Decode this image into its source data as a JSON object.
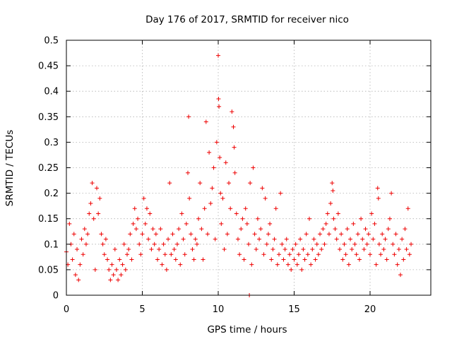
{
  "chart_data": {
    "type": "scatter",
    "title": "Day 176 of 2017, SRMTID for receiver nico",
    "xlabel": "GPS time / hours",
    "ylabel": "SRMTID / TECUs",
    "xlim": [
      0,
      24
    ],
    "ylim": [
      0,
      0.5
    ],
    "x_ticks": [
      0,
      5,
      10,
      15,
      20
    ],
    "x_tick_labels": [
      "0",
      "5",
      "10",
      "15",
      "20"
    ],
    "y_ticks": [
      0,
      0.05,
      0.1,
      0.15,
      0.2,
      0.25,
      0.3,
      0.35,
      0.4,
      0.45,
      0.5
    ],
    "y_tick_labels": [
      "0",
      "0.05",
      "0.1",
      "0.15",
      "0.2",
      "0.25",
      "0.3",
      "0.35",
      "0.4",
      "0.45",
      "0.5"
    ],
    "grid": true,
    "marker": "+",
    "color": "#ee0000",
    "series": [
      {
        "name": "SRMTID",
        "points": [
          [
            0.0,
            0.085
          ],
          [
            0.1,
            0.06
          ],
          [
            0.2,
            0.14
          ],
          [
            0.3,
            0.1
          ],
          [
            0.4,
            0.07
          ],
          [
            0.5,
            0.12
          ],
          [
            0.6,
            0.04
          ],
          [
            0.7,
            0.09
          ],
          [
            0.8,
            0.03
          ],
          [
            0.9,
            0.06
          ],
          [
            1.0,
            0.11
          ],
          [
            1.1,
            0.08
          ],
          [
            1.2,
            0.13
          ],
          [
            1.3,
            0.1
          ],
          [
            1.4,
            0.12
          ],
          [
            1.5,
            0.16
          ],
          [
            1.6,
            0.18
          ],
          [
            1.7,
            0.22
          ],
          [
            1.8,
            0.15
          ],
          [
            1.9,
            0.05
          ],
          [
            2.0,
            0.21
          ],
          [
            2.1,
            0.16
          ],
          [
            2.2,
            0.19
          ],
          [
            2.3,
            0.12
          ],
          [
            2.4,
            0.1
          ],
          [
            2.5,
            0.08
          ],
          [
            2.6,
            0.11
          ],
          [
            2.7,
            0.07
          ],
          [
            2.8,
            0.05
          ],
          [
            2.9,
            0.03
          ],
          [
            3.0,
            0.06
          ],
          [
            3.1,
            0.04
          ],
          [
            3.2,
            0.09
          ],
          [
            3.3,
            0.05
          ],
          [
            3.4,
            0.03
          ],
          [
            3.5,
            0.07
          ],
          [
            3.6,
            0.04
          ],
          [
            3.7,
            0.06
          ],
          [
            3.8,
            0.1
          ],
          [
            3.9,
            0.05
          ],
          [
            4.0,
            0.08
          ],
          [
            4.1,
            0.09
          ],
          [
            4.2,
            0.12
          ],
          [
            4.3,
            0.07
          ],
          [
            4.4,
            0.14
          ],
          [
            4.5,
            0.17
          ],
          [
            4.6,
            0.13
          ],
          [
            4.7,
            0.15
          ],
          [
            4.8,
            0.1
          ],
          [
            4.9,
            0.08
          ],
          [
            5.0,
            0.12
          ],
          [
            5.1,
            0.19
          ],
          [
            5.2,
            0.14
          ],
          [
            5.3,
            0.17
          ],
          [
            5.4,
            0.11
          ],
          [
            5.5,
            0.16
          ],
          [
            5.6,
            0.09
          ],
          [
            5.7,
            0.13
          ],
          [
            5.8,
            0.1
          ],
          [
            5.9,
            0.12
          ],
          [
            6.0,
            0.07
          ],
          [
            6.1,
            0.09
          ],
          [
            6.2,
            0.13
          ],
          [
            6.3,
            0.06
          ],
          [
            6.4,
            0.1
          ],
          [
            6.5,
            0.08
          ],
          [
            6.6,
            0.05
          ],
          [
            6.7,
            0.11
          ],
          [
            6.8,
            0.22
          ],
          [
            6.9,
            0.08
          ],
          [
            7.0,
            0.12
          ],
          [
            7.1,
            0.09
          ],
          [
            7.2,
            0.07
          ],
          [
            7.3,
            0.1
          ],
          [
            7.4,
            0.13
          ],
          [
            7.5,
            0.06
          ],
          [
            7.6,
            0.16
          ],
          [
            7.7,
            0.11
          ],
          [
            7.8,
            0.08
          ],
          [
            7.9,
            0.14
          ],
          [
            8.0,
            0.24
          ],
          [
            8.05,
            0.35
          ],
          [
            8.1,
            0.19
          ],
          [
            8.2,
            0.12
          ],
          [
            8.3,
            0.09
          ],
          [
            8.4,
            0.07
          ],
          [
            8.5,
            0.11
          ],
          [
            8.6,
            0.1
          ],
          [
            8.7,
            0.15
          ],
          [
            8.8,
            0.22
          ],
          [
            8.9,
            0.13
          ],
          [
            9.0,
            0.07
          ],
          [
            9.1,
            0.17
          ],
          [
            9.2,
            0.34
          ],
          [
            9.3,
            0.12
          ],
          [
            9.4,
            0.28
          ],
          [
            9.5,
            0.18
          ],
          [
            9.6,
            0.21
          ],
          [
            9.7,
            0.25
          ],
          [
            9.8,
            0.11
          ],
          [
            9.9,
            0.3
          ],
          [
            10.0,
            0.47
          ],
          [
            10.02,
            0.385
          ],
          [
            10.05,
            0.37
          ],
          [
            10.1,
            0.27
          ],
          [
            10.15,
            0.2
          ],
          [
            10.2,
            0.14
          ],
          [
            10.3,
            0.19
          ],
          [
            10.4,
            0.09
          ],
          [
            10.5,
            0.26
          ],
          [
            10.6,
            0.12
          ],
          [
            10.7,
            0.22
          ],
          [
            10.8,
            0.17
          ],
          [
            10.9,
            0.36
          ],
          [
            11.0,
            0.33
          ],
          [
            11.05,
            0.29
          ],
          [
            11.1,
            0.24
          ],
          [
            11.2,
            0.16
          ],
          [
            11.3,
            0.11
          ],
          [
            11.4,
            0.08
          ],
          [
            11.5,
            0.13
          ],
          [
            11.6,
            0.15
          ],
          [
            11.7,
            0.07
          ],
          [
            11.8,
            0.17
          ],
          [
            11.9,
            0.14
          ],
          [
            12.0,
            0.1
          ],
          [
            12.1,
            0.22
          ],
          [
            12.2,
            0.06
          ],
          [
            12.3,
            0.25
          ],
          [
            12.4,
            0.12
          ],
          [
            12.5,
            0.09
          ],
          [
            12.6,
            0.15
          ],
          [
            12.7,
            0.11
          ],
          [
            12.8,
            0.13
          ],
          [
            12.9,
            0.21
          ],
          [
            13.0,
            0.08
          ],
          [
            13.1,
            0.19
          ],
          [
            13.2,
            0.1
          ],
          [
            13.3,
            0.12
          ],
          [
            13.4,
            0.14
          ],
          [
            13.5,
            0.07
          ],
          [
            13.6,
            0.09
          ],
          [
            13.7,
            0.11
          ],
          [
            13.8,
            0.17
          ],
          [
            13.9,
            0.06
          ],
          [
            14.0,
            0.08
          ],
          [
            14.1,
            0.2
          ],
          [
            14.2,
            0.1
          ],
          [
            14.3,
            0.07
          ],
          [
            14.4,
            0.09
          ],
          [
            14.5,
            0.11
          ],
          [
            14.6,
            0.06
          ],
          [
            14.7,
            0.08
          ],
          [
            14.8,
            0.05
          ],
          [
            14.9,
            0.09
          ],
          [
            15.0,
            0.07
          ],
          [
            15.1,
            0.1
          ],
          [
            15.2,
            0.06
          ],
          [
            15.3,
            0.08
          ],
          [
            15.4,
            0.11
          ],
          [
            15.5,
            0.05
          ],
          [
            15.6,
            0.09
          ],
          [
            15.7,
            0.07
          ],
          [
            15.8,
            0.12
          ],
          [
            15.9,
            0.08
          ],
          [
            16.0,
            0.15
          ],
          [
            16.1,
            0.06
          ],
          [
            16.2,
            0.09
          ],
          [
            16.3,
            0.11
          ],
          [
            16.4,
            0.07
          ],
          [
            16.5,
            0.1
          ],
          [
            16.6,
            0.08
          ],
          [
            16.7,
            0.12
          ],
          [
            16.8,
            0.09
          ],
          [
            16.9,
            0.13
          ],
          [
            17.0,
            0.1
          ],
          [
            17.1,
            0.14
          ],
          [
            17.2,
            0.16
          ],
          [
            17.3,
            0.12
          ],
          [
            17.4,
            0.18
          ],
          [
            17.5,
            0.22
          ],
          [
            17.55,
            0.205
          ],
          [
            17.6,
            0.15
          ],
          [
            17.7,
            0.13
          ],
          [
            17.8,
            0.11
          ],
          [
            17.9,
            0.16
          ],
          [
            18.0,
            0.09
          ],
          [
            18.1,
            0.12
          ],
          [
            18.2,
            0.07
          ],
          [
            18.3,
            0.1
          ],
          [
            18.4,
            0.08
          ],
          [
            18.5,
            0.13
          ],
          [
            18.6,
            0.06
          ],
          [
            18.7,
            0.11
          ],
          [
            18.8,
            0.09
          ],
          [
            18.9,
            0.14
          ],
          [
            19.0,
            0.1
          ],
          [
            19.1,
            0.08
          ],
          [
            19.2,
            0.12
          ],
          [
            19.3,
            0.07
          ],
          [
            19.4,
            0.15
          ],
          [
            19.5,
            0.11
          ],
          [
            19.6,
            0.09
          ],
          [
            19.7,
            0.13
          ],
          [
            19.8,
            0.1
          ],
          [
            19.9,
            0.12
          ],
          [
            20.0,
            0.08
          ],
          [
            20.1,
            0.16
          ],
          [
            20.2,
            0.11
          ],
          [
            20.3,
            0.14
          ],
          [
            20.4,
            0.06
          ],
          [
            20.5,
            0.21
          ],
          [
            20.55,
            0.19
          ],
          [
            20.6,
            0.1
          ],
          [
            20.7,
            0.08
          ],
          [
            20.8,
            0.12
          ],
          [
            20.9,
            0.09
          ],
          [
            21.0,
            0.11
          ],
          [
            21.1,
            0.07
          ],
          [
            21.2,
            0.13
          ],
          [
            21.3,
            0.15
          ],
          [
            21.4,
            0.2
          ],
          [
            21.5,
            0.1
          ],
          [
            21.6,
            0.08
          ],
          [
            21.7,
            0.12
          ],
          [
            21.8,
            0.06
          ],
          [
            21.9,
            0.09
          ],
          [
            22.0,
            0.04
          ],
          [
            22.1,
            0.11
          ],
          [
            22.2,
            0.07
          ],
          [
            22.3,
            0.13
          ],
          [
            22.4,
            0.09
          ],
          [
            22.5,
            0.17
          ],
          [
            22.6,
            0.08
          ],
          [
            22.7,
            0.1
          ],
          [
            12.05,
            0.0
          ]
        ]
      }
    ]
  }
}
